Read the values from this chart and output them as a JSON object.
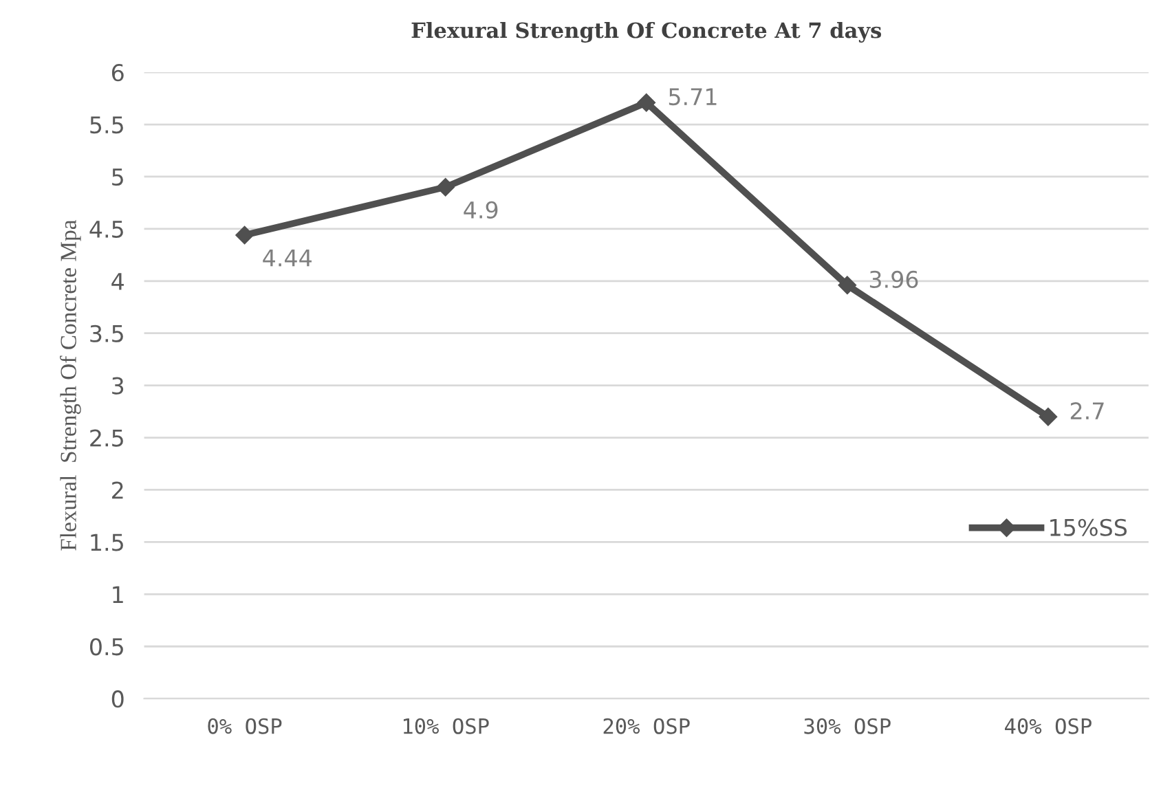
{
  "chart_data": {
    "type": "line",
    "title": "Flexural Strength Of Concrete At 7 days",
    "ylabel": "Flexural  Strength Of Concrete Mpa",
    "categories": [
      "0% OSP",
      "10% OSP",
      "20% OSP",
      "30% OSP",
      "40% OSP"
    ],
    "series": [
      {
        "name": "15%SS",
        "color": "#505050",
        "values": [
          4.44,
          4.9,
          5.71,
          3.96,
          2.7
        ]
      }
    ],
    "ylim": [
      0,
      6
    ],
    "yticks": [
      0,
      0.5,
      1,
      1.5,
      2,
      2.5,
      3,
      3.5,
      4,
      4.5,
      5,
      5.5,
      6
    ],
    "grid": "y",
    "legend": "right",
    "marker": "diamond",
    "line_style": "solid",
    "data_labels": true
  }
}
